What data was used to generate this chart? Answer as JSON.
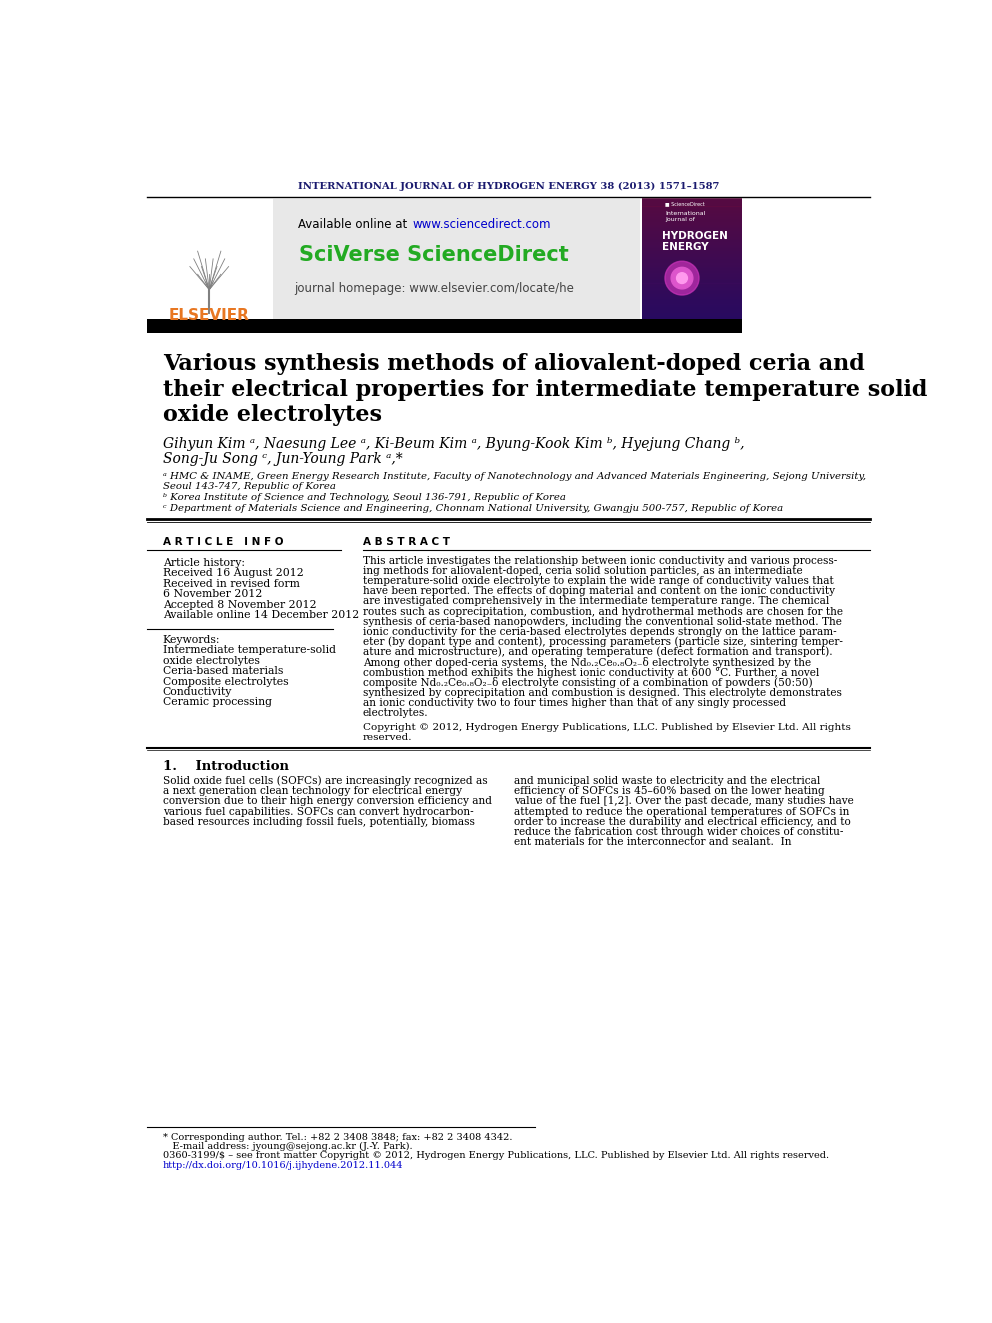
{
  "journal_header": "INTERNATIONAL JOURNAL OF HYDROGEN ENERGY 38 (2013) 1571–1587",
  "available_online": "Available online at ",
  "website": "www.sciencedirect.com",
  "sciverse": "SciVerse ScienceDirect",
  "journal_homepage": "journal homepage: www.elsevier.com/locate/he",
  "title_line1": "Various synthesis methods of aliovalent-doped ceria and",
  "title_line2": "their electrical properties for intermediate temperature solid",
  "title_line3": "oxide electrolytes",
  "authors": "Gihyun Kim ᵃ, Naesung Lee ᵃ, Ki-Beum Kim ᵃ, Byung-Kook Kim ᵇ, Hyejung Chang ᵇ,",
  "authors2": "Song-Ju Song ᶜ, Jun-Young Park ᵃ,*",
  "affil_a": "ᵃ HMC & INAME, Green Energy Research Institute, Faculty of Nanotechnology and Advanced Materials Engineering, Sejong University,",
  "affil_a2": "Seoul 143-747, Republic of Korea",
  "affil_b": "ᵇ Korea Institute of Science and Technology, Seoul 136-791, Republic of Korea",
  "affil_c": "ᶜ Department of Materials Science and Engineering, Chonnam National University, Gwangju 500-757, Republic of Korea",
  "article_info_header": "A R T I C L E   I N F O",
  "abstract_header": "A B S T R A C T",
  "article_history": "Article history:",
  "received1": "Received 16 August 2012",
  "received2": "Received in revised form",
  "received2b": "6 November 2012",
  "accepted": "Accepted 8 November 2012",
  "available": "Available online 14 December 2012",
  "keywords_header": "Keywords:",
  "keyword1": "Intermediate temperature-solid",
  "keyword2": "oxide electrolytes",
  "keyword3": "Ceria-based materials",
  "keyword4": "Composite electrolytes",
  "keyword5": "Conductivity",
  "keyword6": "Ceramic processing",
  "copyright": "Copyright © 2012, Hydrogen Energy Publications, LLC. Published by Elsevier Ltd. All rights",
  "copyright2": "reserved.",
  "intro_header": "1.    Introduction",
  "footnote1": "* Corresponding author. Tel.: +82 2 3408 3848; fax: +82 2 3408 4342.",
  "footnote2": "   E-mail address: jyoung@sejong.ac.kr (J.-Y. Park).",
  "footnote3": "0360-3199/$ – see front matter Copyright © 2012, Hydrogen Energy Publications, LLC. Published by Elsevier Ltd. All rights reserved.",
  "footnote4": "http://dx.doi.org/10.1016/j.ijhydene.2012.11.044",
  "header_color": "#1a1a6e",
  "elsevier_color": "#e87722",
  "sciverse_color": "#22aa22",
  "link_color": "#0000cc",
  "bg_header_gray": "#e8e8e8",
  "bg_white": "#ffffff",
  "separator_color": "#000000",
  "abstract_lines": [
    "This article investigates the relationship between ionic conductivity and various process-",
    "ing methods for aliovalent-doped, ceria solid solution particles, as an intermediate",
    "temperature-solid oxide electrolyte to explain the wide range of conductivity values that",
    "have been reported. The effects of doping material and content on the ionic conductivity",
    "are investigated comprehensively in the intermediate temperature range. The chemical",
    "routes such as coprecipitation, combustion, and hydrothermal methods are chosen for the",
    "synthesis of ceria-based nanopowders, including the conventional solid-state method. The",
    "ionic conductivity for the ceria-based electrolytes depends strongly on the lattice param-",
    "eter (by dopant type and content), processing parameters (particle size, sintering temper-",
    "ature and microstructure), and operating temperature (defect formation and transport).",
    "Among other doped-ceria systems, the Nd₀.₂Ce₀.₈O₂₋δ electrolyte synthesized by the",
    "combustion method exhibits the highest ionic conductivity at 600 °C. Further, a novel",
    "composite Nd₀.₂Ce₀.₈O₂₋δ electrolyte consisting of a combination of powders (50:50)",
    "synthesized by coprecipitation and combustion is designed. This electrolyte demonstrates",
    "an ionic conductivity two to four times higher than that of any singly processed",
    "electrolytes."
  ],
  "intro_left_lines": [
    "Solid oxide fuel cells (SOFCs) are increasingly recognized as",
    "a next generation clean technology for electrical energy",
    "conversion due to their high energy conversion efficiency and",
    "various fuel capabilities. SOFCs can convert hydrocarbon-",
    "based resources including fossil fuels, potentially, biomass"
  ],
  "intro_right_lines": [
    "and municipal solid waste to electricity and the electrical",
    "efficiency of SOFCs is 45–60% based on the lower heating",
    "value of the fuel [1,2]. Over the past decade, many studies have",
    "attempted to reduce the operational temperatures of SOFCs in",
    "order to increase the durability and electrical efficiency, and to",
    "reduce the fabrication cost through wider choices of constitu-",
    "ent materials for the interconnector and sealant.  In"
  ]
}
